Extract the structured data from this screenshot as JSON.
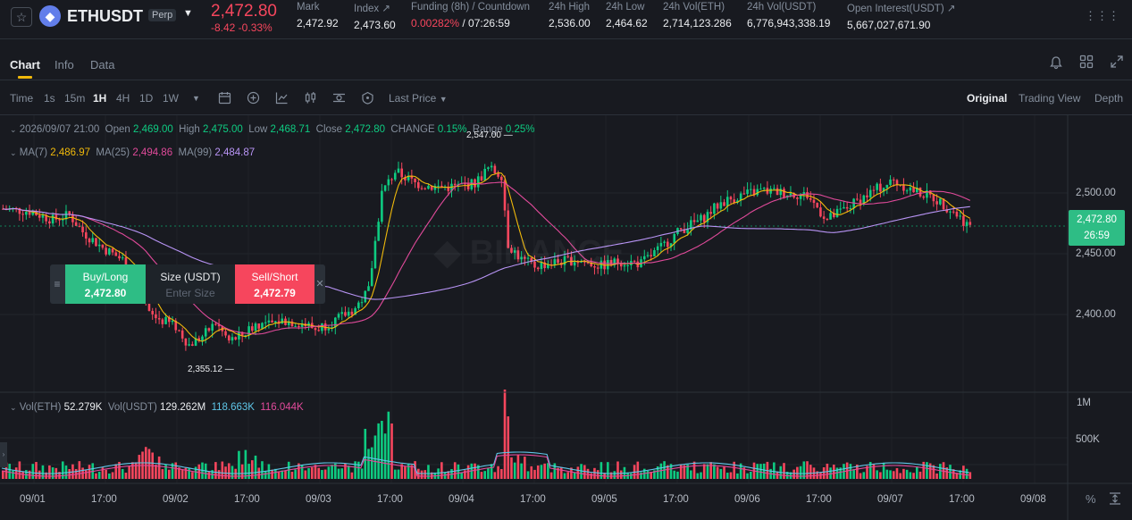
{
  "header": {
    "symbol": "ETHUSDT",
    "badge": "Perp",
    "last_price": "2,472.80",
    "change": "-8.42 -0.33%",
    "stats": [
      {
        "label": "Mark",
        "value": "2,472.92"
      },
      {
        "label": "Index ↗",
        "value": "2,473.60"
      },
      {
        "label": "Funding (8h) / Countdown",
        "value_red": "0.00282%",
        "value_rest": " / 07:26:59"
      },
      {
        "label": "24h High",
        "value": "2,536.00"
      },
      {
        "label": "24h Low",
        "value": "2,464.62"
      },
      {
        "label": "24h Vol(ETH)",
        "value": "2,714,123.286"
      },
      {
        "label": "24h Vol(USDT)",
        "value": "6,776,943,338.19"
      },
      {
        "label": "Open Interest(USDT) ↗",
        "value": "5,667,027,671.90"
      }
    ]
  },
  "tabs": [
    "Chart",
    "Info",
    "Data"
  ],
  "toolbar": {
    "intervals": [
      "Time",
      "1s",
      "15m",
      "1H",
      "4H",
      "1D",
      "1W"
    ],
    "active_interval": "1H",
    "price_type": "Last Price",
    "views": [
      "Original",
      "Trading View",
      "Depth"
    ],
    "active_view": "Original"
  },
  "ohlc": {
    "date": "2026/09/07 21:00",
    "open_label": "Open",
    "open": "2,469.00",
    "high_label": "High",
    "high": "2,475.00",
    "low_label": "Low",
    "low": "2,468.71",
    "close_label": "Close",
    "close": "2,472.80",
    "change_label": "CHANGE",
    "change": "0.15%",
    "range_label": "Range",
    "range": "0.25%"
  },
  "ma": {
    "label": "MA(7)",
    "ma7": "2,486.97",
    "label25": "MA(25)",
    "ma25": "2,494.86",
    "label99": "MA(99)",
    "ma99": "2,484.87"
  },
  "vol": {
    "eth_label": "Vol(ETH)",
    "eth": "52.279K",
    "usdt_label": "Vol(USDT)",
    "usdt": "129.262M",
    "ma1": "118.663K",
    "ma2": "116.044K"
  },
  "trade": {
    "buy_label": "Buy/Long",
    "buy_price": "2,472.80",
    "size_label": "Size (USDT)",
    "size_placeholder": "Enter Size",
    "sell_label": "Sell/Short",
    "sell_price": "2,472.79"
  },
  "price_axis": [
    "2,500.00",
    "2,450.00",
    "2,400.00"
  ],
  "vol_axis": [
    "1M",
    "500K"
  ],
  "last_box": {
    "price": "2,472.80",
    "countdown": "26:59"
  },
  "markers": {
    "high": "2,547.00",
    "low": "2,355.12"
  },
  "time_axis": [
    "09/01",
    "17:00",
    "09/02",
    "17:00",
    "09/03",
    "17:00",
    "09/04",
    "17:00",
    "09/05",
    "17:00",
    "09/06",
    "17:00",
    "09/07",
    "17:00",
    "09/08"
  ],
  "colors": {
    "up": "#0ecb81",
    "down": "#f6465d",
    "ma7": "#f0b90b",
    "ma25": "#e04a9a",
    "ma99": "#b894f5",
    "accent": "#f0b90b"
  }
}
